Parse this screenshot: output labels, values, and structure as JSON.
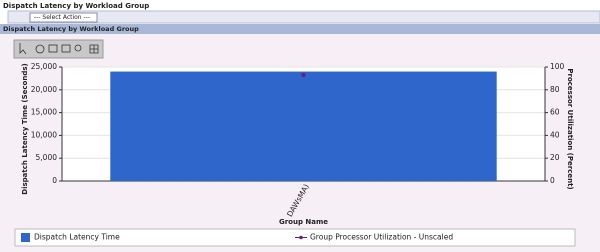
{
  "header": {
    "title": "Dispatch Latency by Workload Group",
    "select": "--- Select Action ---"
  },
  "panel": {
    "title": "Dispatch Latency by Workload Group"
  },
  "chart_data": {
    "type": "bar",
    "categories": [
      "DAWsMA)"
    ],
    "x_label": "Group Name",
    "y_label": "Dispatch Latency Time (Seconds)",
    "y2_label": "Processor Utilization (Percent)",
    "series": [
      {
        "name": "Dispatch Latency Time",
        "color": "#2e66cc",
        "values": [
          24000
        ]
      },
      {
        "name": "Group Processor Utilization - Unscaled",
        "color": "#6b1f7a",
        "values": [
          93
        ],
        "axis": "y2",
        "type": "line"
      }
    ],
    "ylim": [
      0,
      25000
    ],
    "yticks": [
      0,
      {
        "value": 5000,
        "label": "5,000"
      },
      {
        "value": 10000,
        "label": "10,000"
      },
      {
        "value": 15000,
        "label": "15,000"
      },
      {
        "value": 20000,
        "label": "20,000"
      },
      {
        "value": 25000,
        "label": "25,000"
      }
    ],
    "y2lim": [
      0,
      100
    ],
    "y2ticks": [
      0,
      20,
      40,
      60,
      80,
      100
    ],
    "grid": true
  }
}
